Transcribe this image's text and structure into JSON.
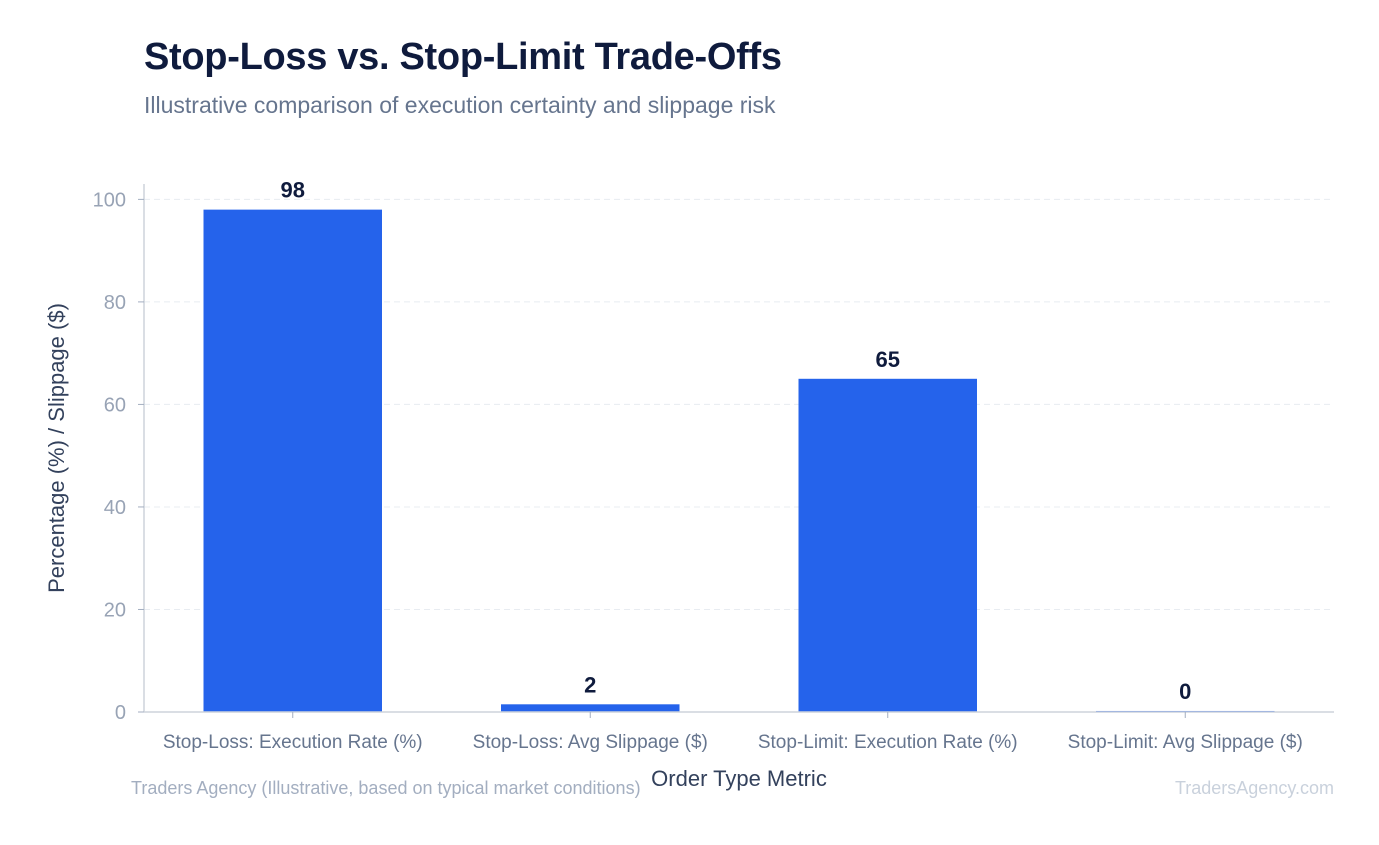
{
  "header": {
    "title": "Stop-Loss vs. Stop-Limit Trade-Offs",
    "subtitle": "Illustrative comparison of execution certainty and slippage risk"
  },
  "footer": {
    "source": "Traders Agency (Illustrative, based on typical market conditions)",
    "watermark": "TradersAgency.com"
  },
  "chart_data": {
    "type": "bar",
    "categories": [
      "Stop-Loss: Execution Rate (%)",
      "Stop-Loss: Avg Slippage ($)",
      "Stop-Limit: Execution Rate (%)",
      "Stop-Limit: Avg Slippage ($)"
    ],
    "values": [
      98,
      1.5,
      65,
      0.2
    ],
    "data_labels": [
      "98",
      "2",
      "65",
      "0"
    ],
    "xlabel": "Order Type Metric",
    "ylabel": "Percentage (%) / Slippage ($)",
    "ylim": [
      0,
      103
    ],
    "yticks": [
      0,
      20,
      40,
      60,
      80,
      100
    ],
    "grid": true,
    "bar_color": "#2563eb"
  }
}
